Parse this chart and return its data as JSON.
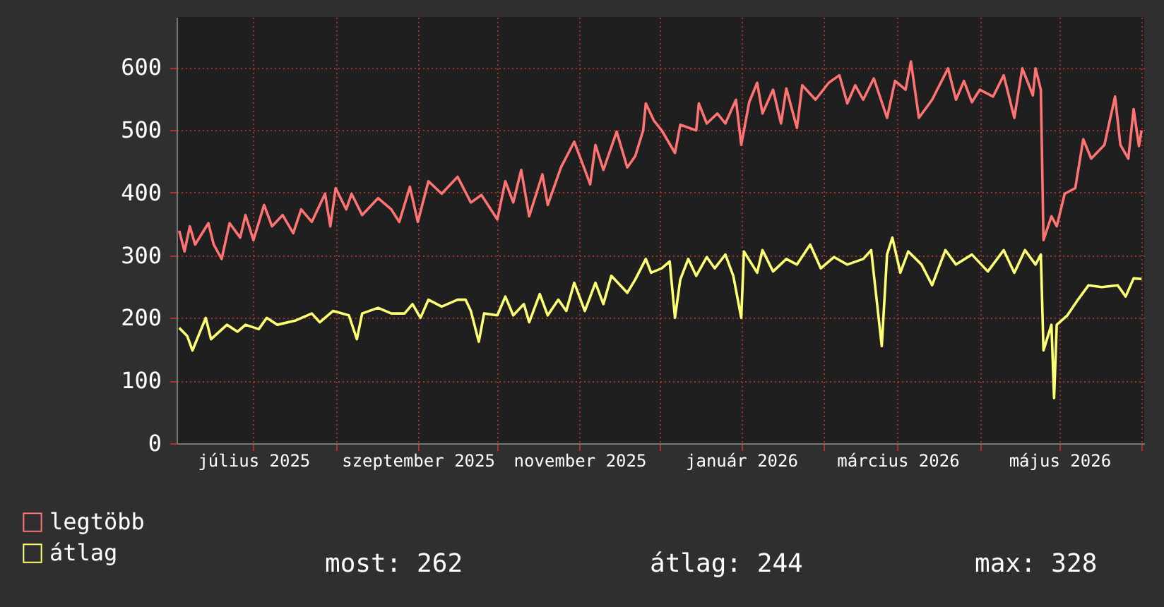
{
  "chart_data": {
    "type": "line",
    "xlim": [
      "2025-06-02",
      "2026-06-02"
    ],
    "xticks": [
      {
        "value": "2025-07-01",
        "label": "július 2025"
      },
      {
        "value": "2025-08-01",
        "label": null
      },
      {
        "value": "2025-09-01",
        "label": "szeptember 2025"
      },
      {
        "value": "2025-10-01",
        "label": null
      },
      {
        "value": "2025-11-01",
        "label": "november 2025"
      },
      {
        "value": "2025-12-01",
        "label": null
      },
      {
        "value": "2026-01-01",
        "label": "január 2026"
      },
      {
        "value": "2026-02-01",
        "label": null
      },
      {
        "value": "2026-03-01",
        "label": "március 2026"
      },
      {
        "value": "2026-04-01",
        "label": null
      },
      {
        "value": "2026-05-01",
        "label": "május 2026"
      },
      {
        "value": "2026-06-01",
        "label": null
      }
    ],
    "ylim": [
      0,
      680
    ],
    "yticks": [
      0,
      100,
      200,
      300,
      400,
      500,
      600
    ],
    "grid": true,
    "legend": "bottom left",
    "marker": "none",
    "line_style": "solid",
    "annotations": [
      "most: 262",
      "átlag: 244",
      "max: 328"
    ],
    "series": [
      {
        "name": "legtöbb",
        "color": "#ff7373",
        "x": [
          "2025-06-03",
          "2025-06-05",
          "2025-06-07",
          "2025-06-09",
          "2025-06-14",
          "2025-06-16",
          "2025-06-19",
          "2025-06-22",
          "2025-06-26",
          "2025-06-28",
          "2025-07-01",
          "2025-07-05",
          "2025-07-08",
          "2025-07-12",
          "2025-07-16",
          "2025-07-19",
          "2025-07-23",
          "2025-07-28",
          "2025-07-30",
          "2025-08-01",
          "2025-08-05",
          "2025-08-07",
          "2025-08-11",
          "2025-08-17",
          "2025-08-22",
          "2025-08-25",
          "2025-08-29",
          "2025-09-01",
          "2025-09-05",
          "2025-09-10",
          "2025-09-16",
          "2025-09-21",
          "2025-09-25",
          "2025-10-01",
          "2025-10-04",
          "2025-10-07",
          "2025-10-10",
          "2025-10-13",
          "2025-10-18",
          "2025-10-20",
          "2025-10-25",
          "2025-10-30",
          "2025-11-03",
          "2025-11-05",
          "2025-11-07",
          "2025-11-10",
          "2025-11-15",
          "2025-11-19",
          "2025-11-22",
          "2025-11-25",
          "2025-11-26",
          "2025-11-29",
          "2025-12-02",
          "2025-12-07",
          "2025-12-09",
          "2025-12-15",
          "2025-12-16",
          "2025-12-19",
          "2025-12-23",
          "2025-12-26",
          "2025-12-30",
          "2026-01-01",
          "2026-01-04",
          "2026-01-07",
          "2026-01-09",
          "2026-01-13",
          "2026-01-16",
          "2026-01-18",
          "2026-01-22",
          "2026-01-24",
          "2026-01-29",
          "2026-02-03",
          "2026-02-07",
          "2026-02-10",
          "2026-02-13",
          "2026-02-16",
          "2026-02-20",
          "2026-02-25",
          "2026-02-28",
          "2026-03-04",
          "2026-03-06",
          "2026-03-09",
          "2026-03-14",
          "2026-03-20",
          "2026-03-23",
          "2026-03-26",
          "2026-03-29",
          "2026-04-01",
          "2026-04-06",
          "2026-04-10",
          "2026-04-14",
          "2026-04-17",
          "2026-04-21",
          "2026-04-22",
          "2026-04-24",
          "2026-04-25",
          "2026-04-28",
          "2026-04-30",
          "2026-05-03",
          "2026-05-07",
          "2026-05-10",
          "2026-05-13",
          "2026-05-18",
          "2026-05-22",
          "2026-05-24",
          "2026-05-27",
          "2026-05-29",
          "2026-05-31",
          "2026-06-01"
        ],
        "values": [
          339,
          306,
          346,
          317,
          351,
          317,
          294,
          351,
          328,
          364,
          324,
          380,
          346,
          364,
          335,
          373,
          353,
          398,
          346,
          407,
          373,
          398,
          364,
          391,
          373,
          353,
          409,
          353,
          418,
          398,
          425,
          384,
          396,
          357,
          418,
          384,
          436,
          362,
          429,
          380,
          440,
          481,
          436,
          413,
          476,
          436,
          497,
          440,
          458,
          499,
          542,
          515,
          499,
          463,
          508,
          499,
          542,
          510,
          526,
          510,
          548,
          476,
          544,
          575,
          526,
          564,
          510,
          566,
          503,
          571,
          548,
          575,
          587,
          542,
          571,
          548,
          582,
          519,
          578,
          564,
          609,
          519,
          548,
          598,
          548,
          578,
          544,
          564,
          553,
          587,
          519,
          598,
          555,
          598,
          564,
          324,
          362,
          346,
          398,
          407,
          485,
          454,
          476,
          553,
          476,
          454,
          533,
          474,
          499
        ]
      },
      {
        "name": "átlag",
        "color": "#ffff73",
        "x": [
          "2025-06-03",
          "2025-06-06",
          "2025-06-08",
          "2025-06-13",
          "2025-06-15",
          "2025-06-21",
          "2025-06-25",
          "2025-06-28",
          "2025-07-03",
          "2025-07-06",
          "2025-07-10",
          "2025-07-17",
          "2025-07-23",
          "2025-07-26",
          "2025-07-31",
          "2025-08-06",
          "2025-08-09",
          "2025-08-11",
          "2025-08-17",
          "2025-08-22",
          "2025-08-27",
          "2025-08-30",
          "2025-09-02",
          "2025-09-05",
          "2025-09-10",
          "2025-09-16",
          "2025-09-19",
          "2025-09-21",
          "2025-09-24",
          "2025-09-26",
          "2025-10-01",
          "2025-10-04",
          "2025-10-07",
          "2025-10-11",
          "2025-10-13",
          "2025-10-17",
          "2025-10-20",
          "2025-10-24",
          "2025-10-27",
          "2025-10-30",
          "2025-11-03",
          "2025-11-07",
          "2025-11-10",
          "2025-11-13",
          "2025-11-19",
          "2025-11-22",
          "2025-11-26",
          "2025-11-28",
          "2025-12-02",
          "2025-12-05",
          "2025-12-07",
          "2025-12-09",
          "2025-12-12",
          "2025-12-15",
          "2025-12-19",
          "2025-12-22",
          "2025-12-26",
          "2025-12-29",
          "2026-01-01",
          "2026-01-02",
          "2026-01-07",
          "2026-01-09",
          "2026-01-13",
          "2026-01-18",
          "2026-01-22",
          "2026-01-27",
          "2026-01-31",
          "2026-02-05",
          "2026-02-10",
          "2026-02-16",
          "2026-02-19",
          "2026-02-23",
          "2026-02-25",
          "2026-02-27",
          "2026-03-02",
          "2026-03-05",
          "2026-03-10",
          "2026-03-14",
          "2026-03-19",
          "2026-03-23",
          "2026-03-29",
          "2026-04-04",
          "2026-04-10",
          "2026-04-14",
          "2026-04-18",
          "2026-04-22",
          "2026-04-24",
          "2026-04-25",
          "2026-04-28",
          "2026-04-29",
          "2026-04-30",
          "2026-05-04",
          "2026-05-08",
          "2026-05-12",
          "2026-05-17",
          "2026-05-23",
          "2026-05-26",
          "2026-05-29",
          "2026-06-01"
        ],
        "values": [
          184,
          171,
          148,
          200,
          166,
          189,
          178,
          189,
          182,
          200,
          189,
          196,
          207,
          193,
          211,
          204,
          166,
          207,
          216,
          207,
          207,
          222,
          200,
          229,
          218,
          229,
          229,
          211,
          162,
          207,
          204,
          234,
          204,
          222,
          193,
          238,
          204,
          229,
          211,
          256,
          211,
          256,
          222,
          267,
          240,
          261,
          294,
          272,
          279,
          290,
          200,
          261,
          294,
          267,
          297,
          279,
          301,
          267,
          200,
          306,
          272,
          308,
          274,
          294,
          285,
          317,
          279,
          297,
          285,
          294,
          308,
          155,
          301,
          328,
          272,
          306,
          285,
          252,
          308,
          285,
          301,
          274,
          308,
          272,
          308,
          285,
          301,
          148,
          189,
          72,
          189,
          204,
          229,
          252,
          249,
          252,
          234,
          263,
          262
        ]
      }
    ]
  }
}
